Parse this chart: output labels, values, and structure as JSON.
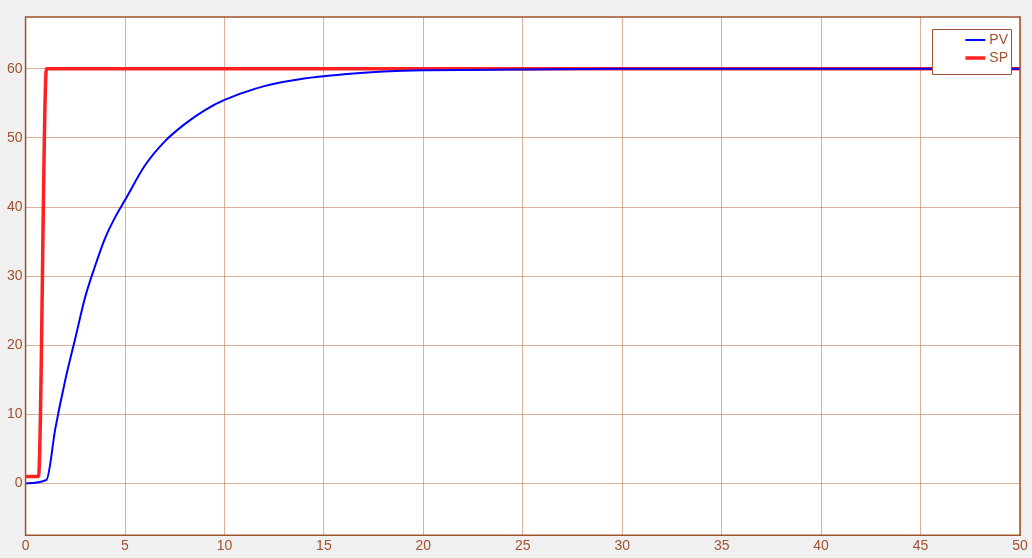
{
  "chart_data": {
    "type": "line",
    "xlim": [
      0,
      50
    ],
    "xticks": [
      0,
      5,
      10,
      15,
      20,
      25,
      30,
      35,
      40,
      45,
      50
    ],
    "ylim": [
      -7.5,
      67.5
    ],
    "yticks": [
      0,
      10,
      20,
      30,
      40,
      50,
      60
    ],
    "grid": true,
    "legend": "top right",
    "marker": "none",
    "line_style": "solid",
    "series": [
      {
        "name": "SP",
        "color": "#ff2020",
        "x": [
          0,
          0.65,
          1.05,
          50
        ],
        "values": [
          1,
          1,
          60,
          60
        ]
      },
      {
        "name": "PV",
        "color": "#0000ff",
        "x": [
          0,
          1.05,
          1.5,
          2,
          2.5,
          3,
          3.5,
          4,
          4.5,
          5,
          6,
          7,
          8,
          9,
          10,
          12,
          14,
          16,
          18,
          20,
          25,
          30,
          50
        ],
        "values": [
          0,
          0.5,
          8,
          15,
          21,
          27,
          31.5,
          35.5,
          38.5,
          41,
          46,
          49.5,
          52,
          54,
          55.5,
          57.5,
          58.6,
          59.2,
          59.6,
          59.8,
          59.9,
          60,
          60
        ]
      }
    ]
  }
}
